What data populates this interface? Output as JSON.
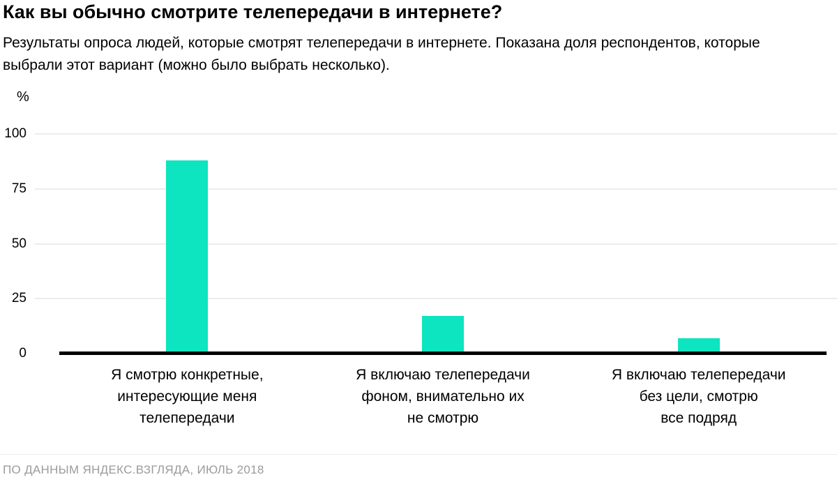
{
  "page": {
    "title": "Как вы обычно смотрите телепередачи в интернете?",
    "subtitle": "Результаты опроса людей, которые смотрят телепередачи в интернете. Показана доля респондентов, которые выбрали этот вариант (можно было выбрать несколько).",
    "source": "ПО ДАННЫМ ЯНДЕКС.ВЗГЛЯДА, ИЮЛЬ 2018"
  },
  "chart_data": {
    "type": "bar",
    "title": "Как вы обычно смотрите телепередачи в интернете?",
    "subtitle": "Результаты опроса людей, которые смотрят телепередачи в интернете. Показана доля респондентов, которые выбрали этот вариант (можно было выбрать несколько).",
    "unit_label": "%",
    "categories": [
      "Я смотрю конкретные, интересующие меня телепередачи",
      "Я включаю телепередачи фоном, внимательно их не смотрю",
      "Я включаю телепередачи без цели, смотрю все подряд"
    ],
    "category_lines": [
      [
        "Я смотрю конкретные,",
        "интересующие меня",
        "телепередачи"
      ],
      [
        "Я включаю телепередачи",
        "фоном, внимательно их",
        "не смотрю"
      ],
      [
        "Я включаю телепередачи",
        "без цели, смотрю",
        "все подряд"
      ]
    ],
    "values": [
      88,
      17,
      7
    ],
    "yticks": [
      0,
      25,
      50,
      75,
      100
    ],
    "ylim": [
      0,
      100
    ],
    "ylabel": "%",
    "xlabel": "",
    "bar_color": "#0de5c0",
    "grid": true,
    "legend": false,
    "source": "ПО ДАННЫМ ЯНДЕКС.ВЗГЛЯДА, ИЮЛЬ 2018"
  }
}
